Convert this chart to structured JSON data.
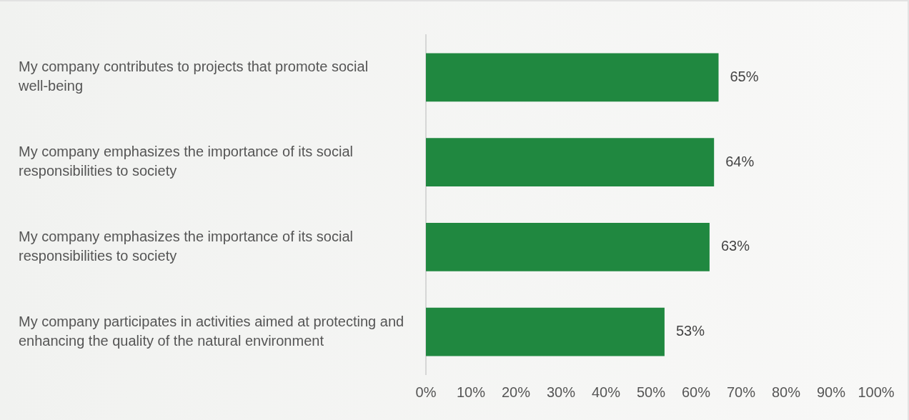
{
  "chart_data": {
    "type": "bar",
    "orientation": "horizontal",
    "categories": [
      "My company contributes to projects that promote social well-being",
      "My company emphasizes the importance of its social responsibilities to society",
      "My company emphasizes the importance of its social responsibilities to society",
      "My company participates in activities aimed at protecting and enhancing the quality of the natural environment"
    ],
    "values": [
      65,
      64,
      63,
      53
    ],
    "value_labels": [
      "65%",
      "64%",
      "63%",
      "53%"
    ],
    "color": "#208840",
    "xlim": [
      0,
      100
    ],
    "xticks": [
      {
        "value": 0,
        "label": "0%"
      },
      {
        "value": 10,
        "label": "10%"
      },
      {
        "value": 20,
        "label": "20%"
      },
      {
        "value": 30,
        "label": "30%"
      },
      {
        "value": 40,
        "label": "40%"
      },
      {
        "value": 50,
        "label": "50%"
      },
      {
        "value": 60,
        "label": "60%"
      },
      {
        "value": 70,
        "label": "70%"
      },
      {
        "value": 80,
        "label": "80%"
      },
      {
        "value": 90,
        "label": "90%"
      },
      {
        "value": 100,
        "label": "100%"
      }
    ],
    "grid": false,
    "legend": false
  }
}
